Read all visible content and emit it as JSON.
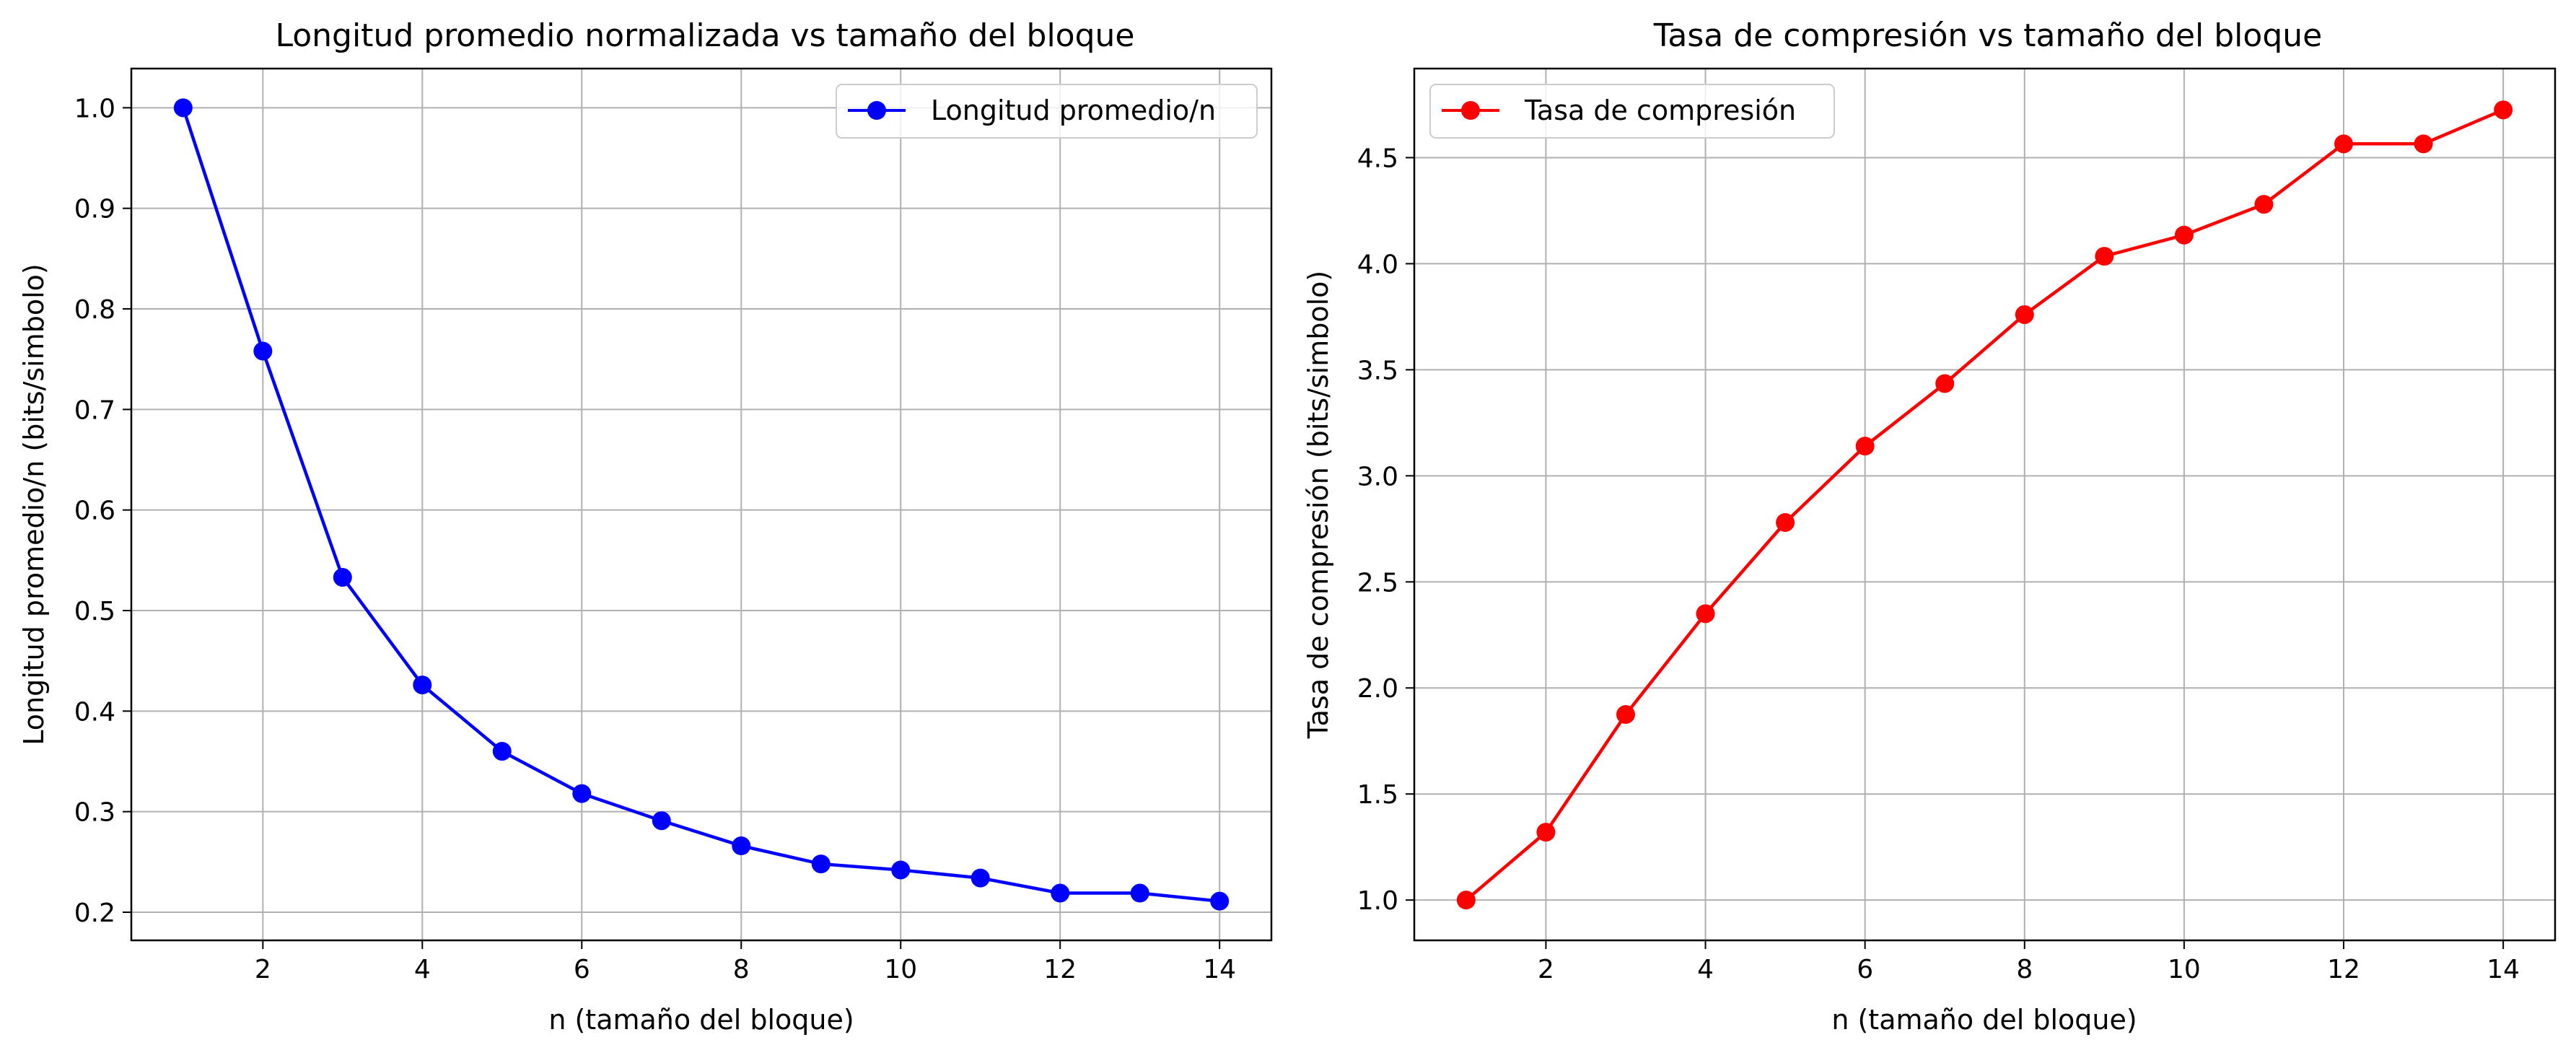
{
  "chart_data": [
    {
      "type": "line",
      "title": "Longitud promedio normalizada vs tamaño del bloque",
      "xlabel": "n (tamaño del bloque)",
      "ylabel": "Longitud promedio/n (bits/simbolo)",
      "xlim": [
        0.35,
        14.65
      ],
      "ylim": [
        0.172,
        1.039
      ],
      "xticks": [
        2,
        4,
        6,
        8,
        10,
        12,
        14
      ],
      "yticks": [
        0.2,
        0.3,
        0.4,
        0.5,
        0.6,
        0.7,
        0.8,
        0.9,
        1.0
      ],
      "ytick_labels": [
        "0.2",
        "0.3",
        "0.4",
        "0.5",
        "0.6",
        "0.7",
        "0.8",
        "0.9",
        "1.0"
      ],
      "grid": true,
      "legend": "upper right",
      "series": [
        {
          "name": "Longitud promedio/n",
          "color": "#0000ff",
          "marker": "circle",
          "x": [
            1,
            2,
            3,
            4,
            5,
            6,
            7,
            8,
            9,
            10,
            11,
            12,
            13,
            14
          ],
          "y": [
            1.0,
            0.758,
            0.533,
            0.426,
            0.36,
            0.318,
            0.291,
            0.266,
            0.248,
            0.242,
            0.234,
            0.219,
            0.219,
            0.211
          ]
        }
      ]
    },
    {
      "type": "line",
      "title": "Tasa de compresión vs tamaño del bloque",
      "xlabel": "n (tamaño del bloque)",
      "ylabel": "Tasa de compresión (bits/simbolo)",
      "xlim": [
        0.35,
        14.65
      ],
      "ylim": [
        0.81,
        4.92
      ],
      "xticks": [
        2,
        4,
        6,
        8,
        10,
        12,
        14
      ],
      "yticks": [
        1.0,
        1.5,
        2.0,
        2.5,
        3.0,
        3.5,
        4.0,
        4.5
      ],
      "ytick_labels": [
        "1.0",
        "1.5",
        "2.0",
        "2.5",
        "3.0",
        "3.5",
        "4.0",
        "4.5"
      ],
      "grid": true,
      "legend": "upper left",
      "series": [
        {
          "name": "Tasa de compresión",
          "color": "#ff0000",
          "marker": "circle",
          "x": [
            1,
            2,
            3,
            4,
            5,
            6,
            7,
            8,
            9,
            10,
            11,
            12,
            13,
            14
          ],
          "y": [
            1.0,
            1.32,
            1.875,
            2.35,
            2.78,
            3.14,
            3.435,
            3.76,
            4.035,
            4.135,
            4.28,
            4.565,
            4.565,
            4.725
          ]
        }
      ]
    }
  ]
}
